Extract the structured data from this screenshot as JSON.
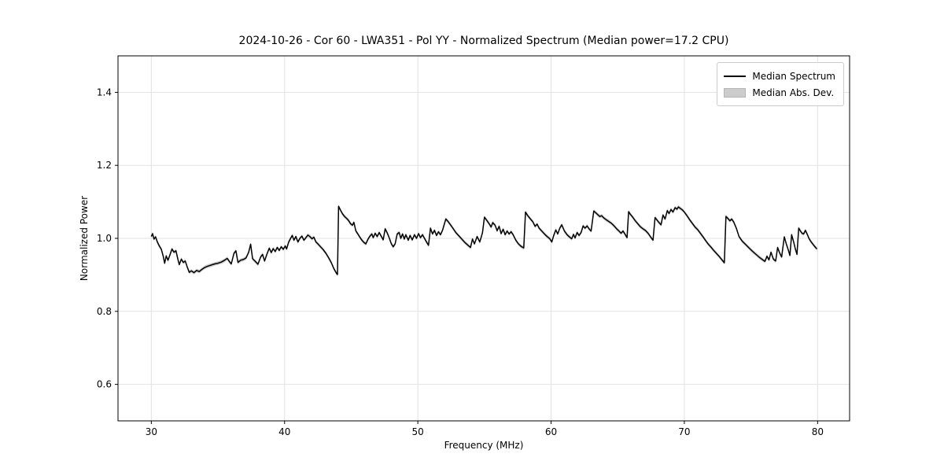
{
  "figure": {
    "title": "2024-10-26 - Cor 60 - LWA351 - Pol YY - Normalized Spectrum (Median power=17.2 CPU)",
    "xlabel": "Frequency (MHz)",
    "ylabel": "Normalized Power",
    "background_color": "#ffffff",
    "line_color": "#000000",
    "band_color": "#cccccc",
    "grid_color": "#e2e2e2",
    "spine_color": "#000000"
  },
  "legend": {
    "position": "upper right",
    "items": [
      {
        "label": "Median Spectrum",
        "type": "line",
        "color": "#000000"
      },
      {
        "label": "Median Abs. Dev.",
        "type": "patch",
        "color": "#cccccc"
      }
    ]
  },
  "chart_data": {
    "type": "line",
    "title": "2024-10-26 - Cor 60 - LWA351 - Pol YY - Normalized Spectrum (Median power=17.2 CPU)",
    "xlabel": "Frequency (MHz)",
    "ylabel": "Normalized Power",
    "xlim": [
      27.5,
      82.4
    ],
    "ylim": [
      0.5,
      1.5
    ],
    "xticks": [
      30,
      40,
      50,
      60,
      70,
      80
    ],
    "xtick_labels": [
      "30",
      "40",
      "50",
      "60",
      "70",
      "80"
    ],
    "yticks": [
      0.6,
      0.8,
      1.0,
      1.2,
      1.4
    ],
    "ytick_labels": [
      "0.6",
      "0.8",
      "1.0",
      "1.2",
      "1.4"
    ],
    "grid": true,
    "legend_position": "upper right",
    "series": [
      {
        "name": "Median Spectrum",
        "type": "line",
        "color": "#000000",
        "x": [
          30.0,
          30.1,
          30.2,
          30.32,
          30.45,
          30.6,
          30.75,
          30.9,
          31.0,
          31.12,
          31.25,
          31.4,
          31.55,
          31.7,
          31.85,
          32.0,
          32.1,
          32.25,
          32.4,
          32.55,
          32.7,
          32.85,
          33.0,
          33.2,
          33.4,
          33.6,
          33.8,
          34.0,
          34.25,
          34.5,
          34.75,
          35.0,
          35.25,
          35.5,
          35.7,
          35.85,
          36.0,
          36.2,
          36.35,
          36.5,
          36.7,
          36.9,
          37.1,
          37.3,
          37.45,
          37.6,
          37.8,
          38.0,
          38.2,
          38.35,
          38.5,
          38.7,
          38.85,
          39.0,
          39.15,
          39.3,
          39.45,
          39.6,
          39.75,
          39.9,
          40.05,
          40.15,
          40.3,
          40.45,
          40.58,
          40.7,
          40.85,
          41.0,
          41.15,
          41.3,
          41.45,
          41.6,
          41.75,
          41.9,
          42.05,
          42.2,
          42.35,
          42.5,
          42.7,
          42.9,
          43.1,
          43.3,
          43.5,
          43.7,
          43.9,
          43.97,
          44.05,
          44.2,
          44.35,
          44.5,
          44.65,
          44.8,
          44.95,
          45.1,
          45.2,
          45.35,
          45.5,
          45.65,
          45.8,
          45.95,
          46.1,
          46.25,
          46.4,
          46.55,
          46.65,
          46.8,
          46.95,
          47.1,
          47.25,
          47.4,
          47.55,
          47.7,
          47.85,
          48.0,
          48.15,
          48.3,
          48.45,
          48.6,
          48.72,
          48.85,
          48.98,
          49.1,
          49.28,
          49.42,
          49.58,
          49.75,
          49.9,
          50.05,
          50.2,
          50.35,
          50.5,
          50.65,
          50.8,
          50.95,
          51.1,
          51.25,
          51.4,
          51.55,
          51.7,
          51.85,
          52.0,
          52.1,
          52.25,
          52.45,
          52.65,
          52.85,
          53.05,
          53.3,
          53.55,
          53.8,
          53.95,
          54.1,
          54.25,
          54.45,
          54.65,
          54.85,
          55.0,
          55.2,
          55.35,
          55.5,
          55.62,
          55.8,
          55.95,
          56.1,
          56.25,
          56.4,
          56.55,
          56.7,
          56.85,
          57.0,
          57.15,
          57.35,
          57.55,
          57.75,
          57.95,
          58.08,
          58.25,
          58.45,
          58.62,
          58.8,
          58.95,
          59.1,
          59.3,
          59.5,
          59.7,
          59.9,
          60.05,
          60.2,
          60.35,
          60.5,
          60.65,
          60.8,
          61.0,
          61.2,
          61.4,
          61.55,
          61.68,
          61.8,
          61.95,
          62.1,
          62.25,
          62.4,
          62.55,
          62.7,
          62.85,
          63.0,
          63.2,
          63.35,
          63.5,
          63.65,
          63.8,
          63.95,
          64.1,
          64.3,
          64.5,
          64.65,
          64.8,
          64.95,
          65.1,
          65.25,
          65.4,
          65.55,
          65.7,
          65.82,
          65.95,
          66.1,
          66.3,
          66.5,
          66.7,
          66.9,
          67.1,
          67.3,
          67.5,
          67.65,
          67.8,
          67.95,
          68.1,
          68.25,
          68.4,
          68.55,
          68.72,
          68.85,
          69.0,
          69.15,
          69.3,
          69.45,
          69.55,
          69.7,
          69.85,
          70.0,
          70.2,
          70.4,
          70.6,
          70.8,
          71.0,
          71.2,
          71.4,
          71.6,
          71.8,
          72.0,
          72.2,
          72.4,
          72.6,
          72.8,
          73.0,
          73.12,
          73.28,
          73.42,
          73.55,
          73.7,
          73.9,
          74.1,
          74.35,
          74.6,
          74.85,
          75.1,
          75.35,
          75.6,
          75.85,
          76.05,
          76.2,
          76.35,
          76.5,
          76.68,
          76.85,
          77.0,
          77.15,
          77.3,
          77.5,
          77.65,
          77.8,
          77.92,
          78.05,
          78.2,
          78.32,
          78.45,
          78.58,
          78.7,
          78.82,
          78.95,
          79.08,
          79.2,
          79.35,
          79.5,
          79.65,
          79.8,
          79.95
        ],
        "y": [
          1.005,
          1.013,
          0.998,
          1.004,
          0.99,
          0.979,
          0.97,
          0.95,
          0.932,
          0.952,
          0.94,
          0.955,
          0.971,
          0.962,
          0.966,
          0.942,
          0.928,
          0.943,
          0.934,
          0.938,
          0.921,
          0.907,
          0.911,
          0.906,
          0.912,
          0.909,
          0.915,
          0.92,
          0.924,
          0.927,
          0.93,
          0.932,
          0.935,
          0.94,
          0.945,
          0.937,
          0.93,
          0.959,
          0.966,
          0.934,
          0.94,
          0.942,
          0.946,
          0.961,
          0.984,
          0.944,
          0.937,
          0.929,
          0.949,
          0.956,
          0.938,
          0.959,
          0.973,
          0.961,
          0.972,
          0.964,
          0.975,
          0.967,
          0.977,
          0.97,
          0.979,
          0.971,
          0.989,
          1.0,
          1.008,
          0.995,
          1.005,
          0.99,
          1.0,
          1.006,
          0.995,
          1.002,
          1.009,
          1.005,
          0.999,
          1.003,
          0.99,
          0.985,
          0.977,
          0.969,
          0.959,
          0.947,
          0.934,
          0.917,
          0.904,
          0.901,
          1.088,
          1.077,
          1.067,
          1.06,
          1.055,
          1.049,
          1.04,
          1.036,
          1.044,
          1.02,
          1.012,
          1.003,
          0.995,
          0.989,
          0.985,
          0.997,
          1.006,
          1.012,
          1.002,
          1.014,
          1.005,
          1.016,
          1.006,
          0.996,
          1.026,
          1.015,
          1.002,
          0.986,
          0.977,
          0.985,
          1.012,
          1.016,
          1.0,
          1.012,
          0.998,
          1.01,
          0.995,
          1.008,
          0.996,
          1.01,
          1.0,
          1.013,
          1.002,
          1.01,
          1.0,
          0.99,
          0.981,
          1.028,
          1.012,
          1.022,
          1.008,
          1.018,
          1.01,
          1.022,
          1.04,
          1.053,
          1.047,
          1.037,
          1.027,
          1.016,
          1.008,
          0.998,
          0.988,
          0.98,
          0.975,
          0.998,
          0.985,
          1.005,
          0.99,
          1.015,
          1.058,
          1.048,
          1.04,
          1.031,
          1.043,
          1.036,
          1.021,
          1.033,
          1.013,
          1.025,
          1.01,
          1.02,
          1.012,
          1.018,
          1.01,
          0.995,
          0.985,
          0.978,
          0.974,
          1.072,
          1.062,
          1.053,
          1.046,
          1.033,
          1.039,
          1.028,
          1.02,
          1.012,
          1.005,
          0.999,
          0.99,
          1.008,
          1.023,
          1.012,
          1.028,
          1.037,
          1.02,
          1.01,
          1.003,
          0.999,
          1.011,
          1.001,
          1.016,
          1.008,
          1.016,
          1.034,
          1.028,
          1.034,
          1.026,
          1.02,
          1.075,
          1.07,
          1.065,
          1.06,
          1.062,
          1.056,
          1.052,
          1.047,
          1.042,
          1.037,
          1.031,
          1.025,
          1.02,
          1.014,
          1.02,
          1.011,
          1.002,
          1.073,
          1.066,
          1.059,
          1.049,
          1.04,
          1.032,
          1.026,
          1.021,
          1.013,
          1.002,
          0.995,
          1.057,
          1.05,
          1.043,
          1.037,
          1.064,
          1.053,
          1.076,
          1.068,
          1.079,
          1.072,
          1.084,
          1.08,
          1.086,
          1.082,
          1.078,
          1.072,
          1.062,
          1.051,
          1.041,
          1.031,
          1.024,
          1.014,
          1.004,
          0.994,
          0.984,
          0.976,
          0.967,
          0.959,
          0.951,
          0.942,
          0.933,
          1.06,
          1.054,
          1.048,
          1.053,
          1.045,
          1.028,
          1.005,
          0.992,
          0.983,
          0.974,
          0.965,
          0.957,
          0.949,
          0.942,
          0.937,
          0.951,
          0.941,
          0.962,
          0.943,
          0.938,
          0.975,
          0.96,
          0.949,
          1.004,
          0.985,
          0.968,
          0.953,
          1.01,
          0.99,
          0.972,
          0.956,
          1.028,
          1.021,
          1.014,
          1.012,
          1.022,
          1.013,
          1.0,
          0.991,
          0.984,
          0.977,
          0.971
        ]
      },
      {
        "name": "Median Abs. Dev.",
        "type": "band",
        "color": "#cccccc",
        "half_width": 0.005
      }
    ]
  }
}
